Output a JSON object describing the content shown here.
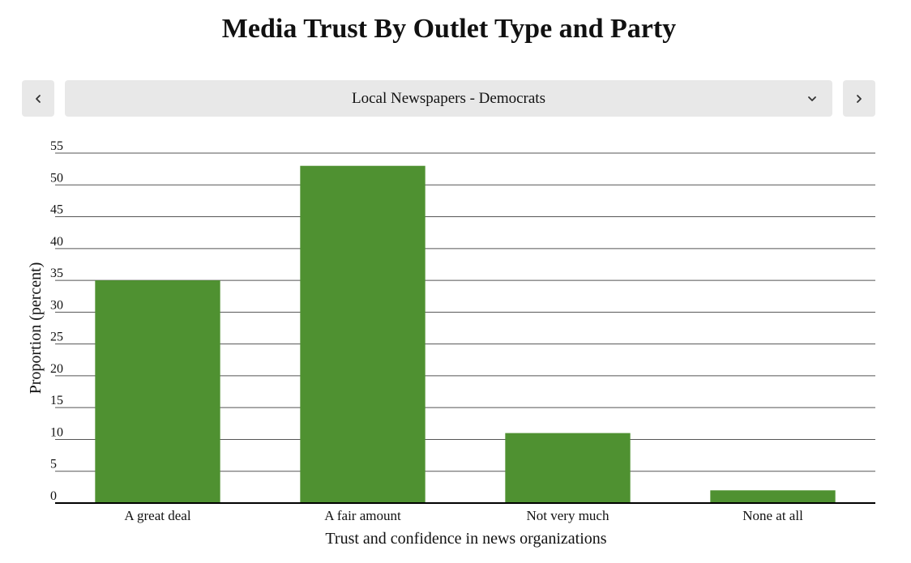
{
  "selector": {
    "value": "Local Newspapers - Democrats"
  },
  "colors": {
    "bar": "#4f9131",
    "grid": "#555555",
    "button_bg": "#e8e8e8"
  },
  "icons": {
    "prev": "chevron-left-icon",
    "next": "chevron-right-icon",
    "dropdown": "chevron-down-icon"
  },
  "chart_data": {
    "type": "bar",
    "title": "Media Trust By Outlet Type and Party",
    "xlabel": "Trust and confidence in news organizations",
    "ylabel": "Proportion (percent)",
    "categories": [
      "A great deal",
      "A fair amount",
      "Not very much",
      "None at all"
    ],
    "values": [
      35,
      53,
      11,
      2
    ],
    "ylim": [
      0,
      55
    ],
    "yticks": [
      0,
      5,
      10,
      15,
      20,
      25,
      30,
      35,
      40,
      45,
      50,
      55
    ],
    "grid": true,
    "legend": "none"
  }
}
